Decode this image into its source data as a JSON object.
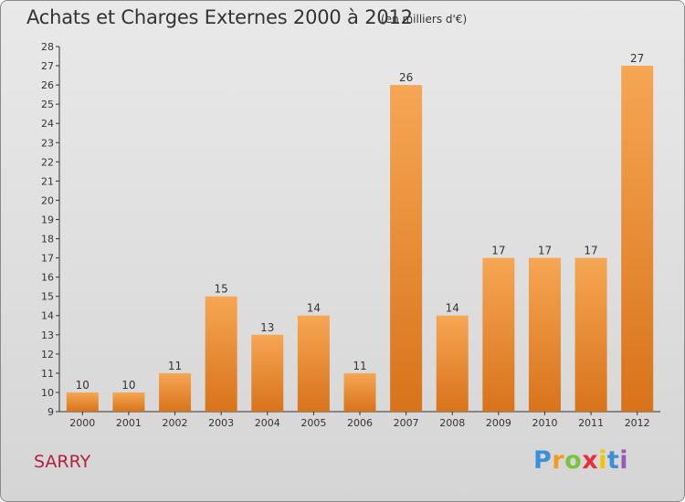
{
  "header": {
    "title": "Achats et Charges Externes 2000 à 2012",
    "unit": "(en milliers d'€)"
  },
  "footer": {
    "commune": "SARRY",
    "logo_letters": [
      "P",
      "r",
      "o",
      "x",
      "i",
      "t",
      "i"
    ],
    "logo_colors": [
      "#3a8fd8",
      "#f39a1a",
      "#7cc242",
      "#e8303a",
      "#f5c400",
      "#3a8fd8",
      "#9b59b6"
    ]
  },
  "colors": {
    "bar_top": "#f6a654",
    "bar_bottom": "#d8731a",
    "axis": "#333333",
    "grid": "#bdbdbd"
  },
  "chart_data": {
    "type": "bar",
    "title": "Achats et Charges Externes 2000 à 2012",
    "subtitle": "(en milliers d'€)",
    "categories": [
      "2000",
      "2001",
      "2002",
      "2003",
      "2004",
      "2005",
      "2006",
      "2007",
      "2008",
      "2009",
      "2010",
      "2011",
      "2012"
    ],
    "values": [
      10,
      10,
      11,
      15,
      13,
      14,
      11,
      26,
      14,
      17,
      17,
      17,
      27
    ],
    "ylim": [
      9,
      28
    ],
    "yticks": [
      9,
      10,
      11,
      12,
      13,
      14,
      15,
      16,
      17,
      18,
      19,
      20,
      21,
      22,
      23,
      24,
      25,
      26,
      27,
      28
    ],
    "grid": false,
    "data_labels": true
  }
}
